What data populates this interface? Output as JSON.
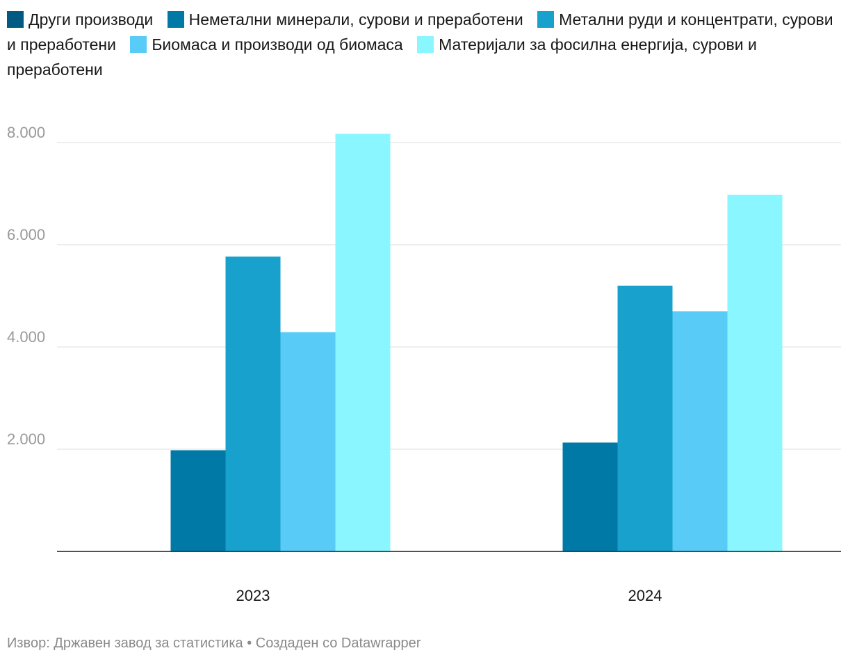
{
  "chart_data": {
    "type": "bar",
    "categories": [
      "2023",
      "2024"
    ],
    "series": [
      {
        "name": "Други производи",
        "color": "#005a82",
        "values": [
          0,
          0
        ]
      },
      {
        "name": "Неметални минерали, сурови и преработени",
        "color": "#0079a6",
        "values": [
          1980,
          2130
        ]
      },
      {
        "name": "Метални руди и концентрати, сурови и преработени",
        "color": "#18a1cd",
        "values": [
          5770,
          5200
        ]
      },
      {
        "name": "Биомаса и производи од биомаса",
        "color": "#58cbf6",
        "values": [
          4290,
          4700
        ]
      },
      {
        "name": "Материјали за фосилна енергија, сурови и преработени",
        "color": "#8af6ff",
        "values": [
          8170,
          6980
        ]
      }
    ],
    "y_ticks": [
      {
        "value": 2000,
        "label": "2.000"
      },
      {
        "value": 4000,
        "label": "4.000"
      },
      {
        "value": 6000,
        "label": "6.000"
      },
      {
        "value": 8000,
        "label": "8.000"
      }
    ],
    "ylim": [
      0,
      8500
    ],
    "grid": true,
    "legend_position": "top"
  },
  "footer": {
    "text": "Извор: Државен завод за статистика • Создаден со Datawrapper"
  }
}
